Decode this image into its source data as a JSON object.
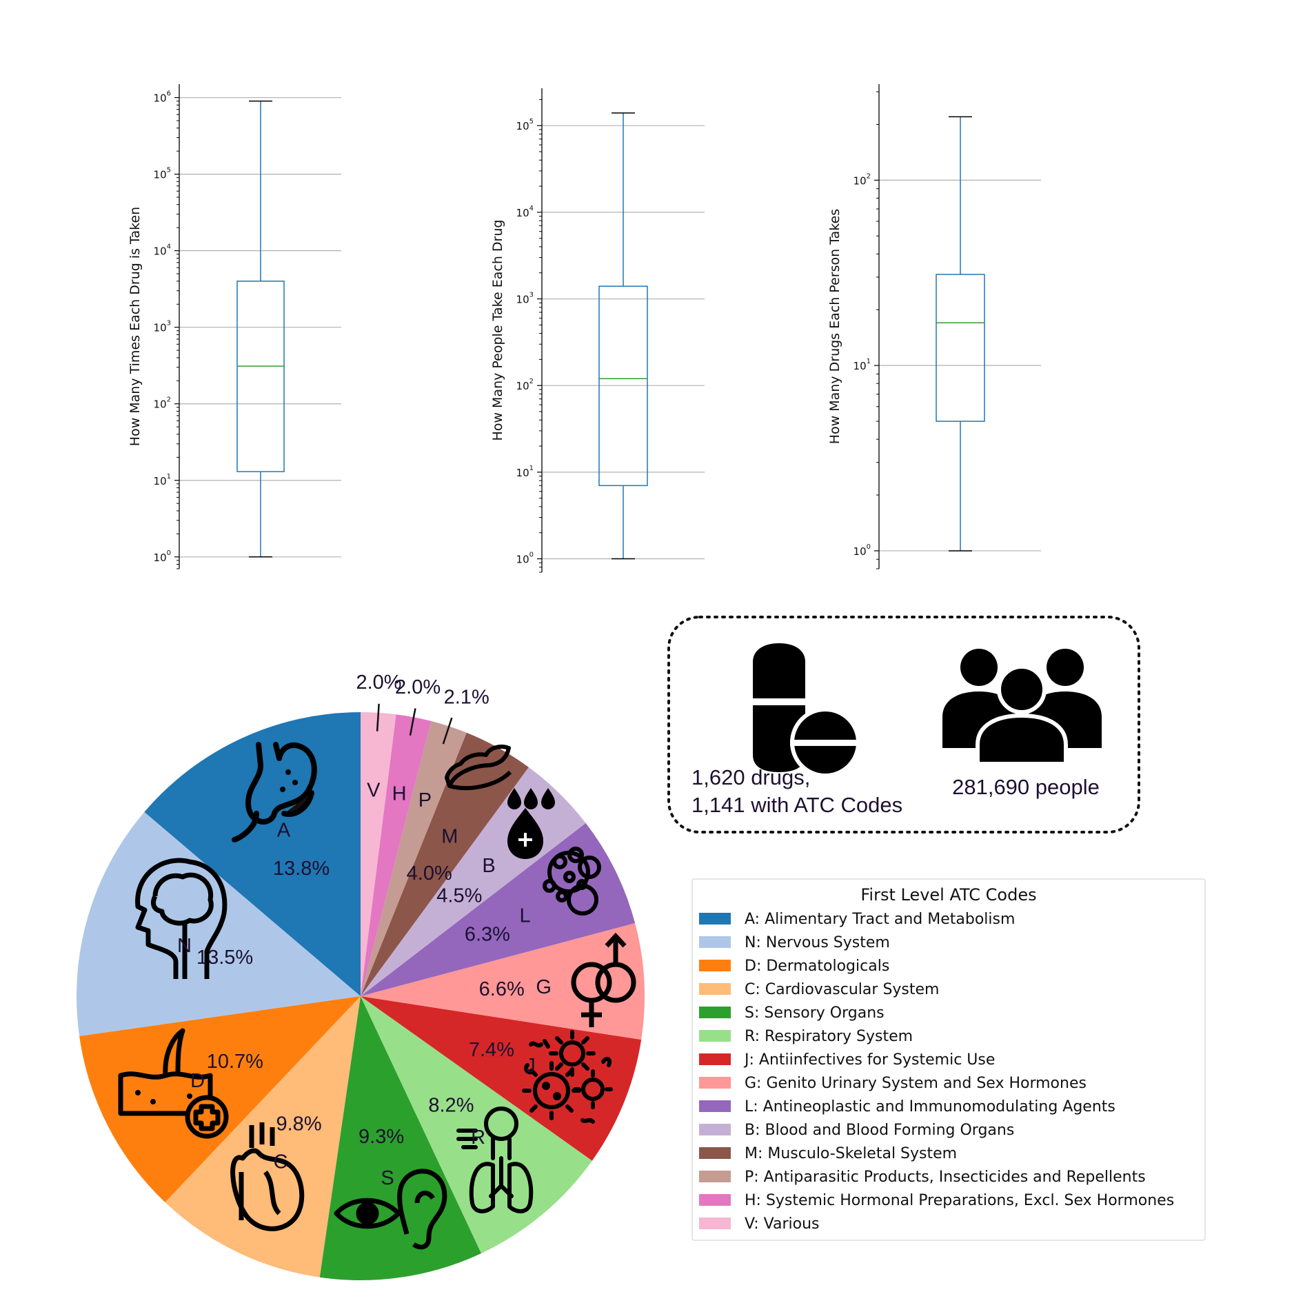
{
  "chart_data": [
    {
      "type": "box",
      "ylabel": "How Many Times Each Drug is Taken",
      "yscale": "log",
      "ylim": [
        0.7,
        1500000
      ],
      "yticks": [
        {
          "base": "10",
          "exp": "0",
          "value": 1
        },
        {
          "base": "10",
          "exp": "1",
          "value": 10
        },
        {
          "base": "10",
          "exp": "2",
          "value": 100
        },
        {
          "base": "10",
          "exp": "3",
          "value": 1000
        },
        {
          "base": "10",
          "exp": "4",
          "value": 10000
        },
        {
          "base": "10",
          "exp": "5",
          "value": 100000
        },
        {
          "base": "10",
          "exp": "6",
          "value": 1000000
        }
      ],
      "grid": true,
      "whisker_low": 1,
      "q1": 13,
      "median": 310,
      "q3": 4000,
      "whisker_high": 900000
    },
    {
      "type": "box",
      "ylabel": "How Many People Take Each Drug",
      "yscale": "log",
      "ylim": [
        0.7,
        270000
      ],
      "yticks": [
        {
          "base": "10",
          "exp": "0",
          "value": 1
        },
        {
          "base": "10",
          "exp": "1",
          "value": 10
        },
        {
          "base": "10",
          "exp": "2",
          "value": 100
        },
        {
          "base": "10",
          "exp": "3",
          "value": 1000
        },
        {
          "base": "10",
          "exp": "4",
          "value": 10000
        },
        {
          "base": "10",
          "exp": "5",
          "value": 100000
        }
      ],
      "grid": true,
      "whisker_low": 1,
      "q1": 7,
      "median": 120,
      "q3": 1400,
      "whisker_high": 140000
    },
    {
      "type": "box",
      "ylabel": "How Many Drugs Each Person Takes",
      "yscale": "log",
      "ylim": [
        0.8,
        330
      ],
      "yticks": [
        {
          "base": "10",
          "exp": "0",
          "value": 1
        },
        {
          "base": "10",
          "exp": "1",
          "value": 10
        },
        {
          "base": "10",
          "exp": "2",
          "value": 100
        }
      ],
      "grid": true,
      "whisker_low": 1,
      "q1": 5,
      "median": 17,
      "q3": 31,
      "whisker_high": 220
    },
    {
      "type": "pie",
      "legend_title": "First Level ATC Codes",
      "legend_position": "right",
      "slices": [
        {
          "code": "A",
          "label": "A: Alimentary Tract and Metabolism",
          "value": 13.8,
          "pct_label": "13.8%",
          "color": "#1f77b4",
          "icon": "stomach-icon"
        },
        {
          "code": "N",
          "label": "N: Nervous System",
          "value": 13.5,
          "pct_label": "13.5%",
          "color": "#aec7e8",
          "icon": "brain-head-icon"
        },
        {
          "code": "D",
          "label": "D: Dermatologicals",
          "value": 10.7,
          "pct_label": "10.7%",
          "color": "#ff7f0e",
          "icon": "skin-icon"
        },
        {
          "code": "C",
          "label": "C: Cardiovascular System",
          "value": 9.8,
          "pct_label": "9.8%",
          "color": "#ffbb78",
          "icon": "heart-icon"
        },
        {
          "code": "S",
          "label": "S: Sensory Organs",
          "value": 9.3,
          "pct_label": "9.3%",
          "color": "#2ca02c",
          "icon": "eye-ear-icon"
        },
        {
          "code": "R",
          "label": "R: Respiratory System",
          "value": 8.2,
          "pct_label": "8.2%",
          "color": "#98df8a",
          "icon": "lungs-icon"
        },
        {
          "code": "J",
          "label": "J: Antiinfectives for Systemic Use",
          "value": 7.4,
          "pct_label": "7.4%",
          "color": "#d62728",
          "icon": "virus-icon"
        },
        {
          "code": "G",
          "label": "G: Genito Urinary System and Sex Hormones",
          "value": 6.6,
          "pct_label": "6.6%",
          "color": "#ff9896",
          "icon": "gender-icon"
        },
        {
          "code": "L",
          "label": "L: Antineoplastic and Immunomodulating Agents",
          "value": 6.3,
          "pct_label": "6.3%",
          "color": "#9467bd",
          "icon": "cells-icon"
        },
        {
          "code": "B",
          "label": "B: Blood and Blood Forming Organs",
          "value": 4.5,
          "pct_label": "4.5%",
          "color": "#c5b0d5",
          "icon": "blood-drop-icon"
        },
        {
          "code": "M",
          "label": "M: Musculo-Skeletal System",
          "value": 4.0,
          "pct_label": "4.0%",
          "color": "#8c564b",
          "icon": "muscle-icon"
        },
        {
          "code": "P",
          "label": "P: Antiparasitic Products, Insecticides and Repellents",
          "value": 2.1,
          "pct_label": "2.1%",
          "color": "#c49c94",
          "icon": ""
        },
        {
          "code": "H",
          "label": "H: Systemic Hormonal Preparations, Excl. Sex Hormones",
          "value": 2.0,
          "pct_label": "2.0%",
          "color": "#e377c2",
          "icon": ""
        },
        {
          "code": "V",
          "label": "V: Various",
          "value": 2.0,
          "pct_label": "2.0%",
          "color": "#f7b6d2",
          "icon": ""
        }
      ]
    }
  ],
  "info_box": {
    "drugs_line1": "1,620 drugs,",
    "drugs_line2": "1,141 with ATC Codes",
    "drugs_icon": "pills-icon",
    "people": "281,690 people",
    "people_icon": "people-icon"
  }
}
